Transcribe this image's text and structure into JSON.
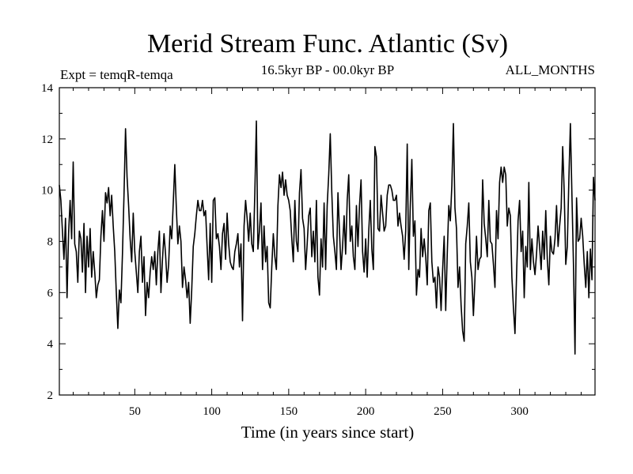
{
  "chart_data": {
    "type": "line",
    "title": "Merid Stream Func. Atlantic (Sv)",
    "subtitle_left": "Expt = temqR-temqa",
    "subtitle_center": "16.5kyr BP - 00.0kyr BP",
    "subtitle_right": "ALL_MONTHS",
    "xlabel": "Time (in years since start)",
    "ylabel": "",
    "xlim": [
      1,
      349
    ],
    "ylim": [
      2,
      14
    ],
    "xticks": [
      50,
      100,
      150,
      200,
      250,
      300
    ],
    "yticks": [
      2,
      4,
      6,
      8,
      10,
      12,
      14
    ],
    "x_start": 1,
    "x_step": 1,
    "series": [
      {
        "name": "Merid Stream Func. Atlantic",
        "values": [
          10.2,
          9.6,
          8.4,
          7.3,
          8.9,
          5.8,
          8.3,
          9.6,
          8.1,
          11.1,
          7.9,
          7.6,
          6.4,
          8.4,
          8.1,
          6.8,
          8.7,
          6.0,
          8.2,
          7.0,
          8.5,
          6.6,
          7.6,
          6.8,
          5.8,
          6.3,
          6.5,
          8.2,
          9.2,
          8.0,
          9.9,
          9.5,
          10.1,
          9.0,
          9.8,
          8.6,
          7.6,
          6.0,
          4.6,
          6.1,
          5.6,
          7.5,
          9.8,
          12.4,
          10.5,
          9.4,
          8.1,
          7.2,
          9.1,
          7.6,
          6.8,
          6.0,
          7.6,
          8.2,
          6.4,
          7.4,
          5.1,
          6.4,
          5.8,
          6.8,
          7.4,
          6.9,
          7.6,
          6.3,
          7.6,
          8.4,
          6.0,
          7.3,
          8.3,
          7.5,
          6.4,
          7.1,
          8.6,
          8.1,
          9.5,
          11.0,
          9.3,
          7.9,
          8.6,
          8.0,
          6.2,
          7.0,
          6.5,
          5.8,
          6.4,
          4.8,
          6.1,
          7.8,
          8.3,
          9.0,
          9.6,
          9.2,
          9.2,
          9.6,
          9.0,
          9.2,
          7.8,
          6.5,
          8.7,
          6.4,
          9.6,
          9.7,
          8.1,
          8.3,
          7.8,
          6.9,
          8.3,
          8.7,
          7.3,
          9.1,
          7.9,
          7.2,
          7.0,
          6.9,
          7.6,
          7.9,
          8.3,
          7.0,
          7.9,
          4.9,
          8.6,
          9.6,
          8.9,
          8.0,
          9.1,
          7.9,
          7.6,
          9.9,
          12.7,
          7.7,
          8.4,
          9.5,
          6.9,
          8.6,
          7.2,
          7.8,
          5.6,
          5.4,
          7.0,
          8.3,
          7.4,
          6.9,
          9.4,
          10.6,
          10.1,
          10.7,
          9.8,
          10.4,
          9.8,
          9.6,
          9.2,
          8.1,
          7.2,
          9.6,
          8.0,
          7.6,
          9.9,
          10.8,
          8.9,
          8.5,
          6.9,
          7.9,
          9.0,
          9.3,
          7.4,
          8.4,
          7.2,
          9.6,
          6.6,
          5.9,
          8.1,
          7.0,
          9.5,
          6.9,
          9.4,
          10.6,
          12.2,
          9.9,
          8.2,
          7.6,
          6.9,
          9.9,
          8.4,
          6.9,
          7.8,
          9.0,
          7.5,
          9.6,
          10.6,
          8.0,
          8.6,
          7.4,
          6.9,
          9.4,
          7.8,
          9.4,
          10.4,
          7.6,
          6.8,
          8.1,
          6.6,
          8.4,
          9.6,
          7.7,
          6.9,
          11.7,
          11.3,
          8.5,
          8.4,
          9.8,
          9.1,
          8.4,
          8.6,
          9.8,
          10.2,
          10.2,
          10.0,
          9.6,
          9.6,
          9.8,
          8.6,
          9.1,
          8.6,
          8.2,
          7.3,
          8.4,
          11.8,
          6.9,
          9.4,
          11.2,
          8.2,
          8.8,
          5.9,
          6.9,
          6.6,
          8.5,
          7.4,
          8.1,
          7.4,
          6.3,
          9.2,
          9.5,
          7.2,
          6.4,
          6.6,
          5.4,
          7.0,
          6.6,
          5.3,
          6.9,
          8.2,
          5.3,
          7.5,
          9.4,
          8.8,
          10.2,
          12.6,
          9.3,
          8.5,
          6.2,
          7.0,
          5.5,
          4.5,
          4.1,
          7.9,
          8.6,
          9.5,
          7.2,
          6.6,
          5.1,
          6.5,
          8.2,
          6.9,
          7.3,
          7.4,
          10.4,
          8.7,
          8.1,
          7.4,
          9.6,
          8.0,
          7.9,
          7.1,
          6.2,
          9.2,
          8.1,
          10.3,
          10.9,
          10.3,
          10.9,
          10.6,
          8.6,
          9.3,
          9.0,
          6.6,
          5.4,
          4.4,
          6.6,
          8.8,
          9.6,
          7.6,
          8.4,
          5.8,
          7.8,
          7.0,
          10.3,
          6.9,
          8.1,
          7.2,
          6.7,
          7.5,
          8.6,
          7.8,
          6.9,
          8.4,
          7.3,
          9.2,
          7.3,
          6.3,
          8.2,
          7.6,
          7.5,
          8.1,
          9.4,
          7.8,
          8.6,
          9.3,
          11.7,
          9.9,
          7.1,
          7.8,
          10.4,
          12.6,
          9.8,
          7.1,
          3.6,
          9.7,
          8.0,
          8.1,
          8.9,
          8.2,
          7.1,
          6.2,
          7.6,
          5.8,
          7.7,
          6.5,
          10.5,
          9.6
        ]
      }
    ]
  }
}
